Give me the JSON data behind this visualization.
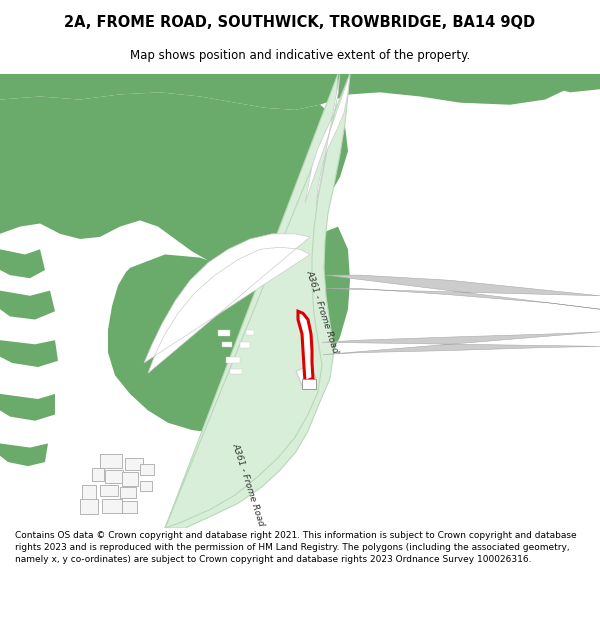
{
  "title": "2A, FROME ROAD, SOUTHWICK, TROWBRIDGE, BA14 9QD",
  "subtitle": "Map shows position and indicative extent of the property.",
  "footer": "Contains OS data © Crown copyright and database right 2021. This information is subject to Crown copyright and database rights 2023 and is reproduced with the permission of HM Land Registry. The polygons (including the associated geometry, namely x, y co-ordinates) are subject to Crown copyright and database rights 2023 Ordnance Survey 100026316.",
  "bg_color": "#ffffff",
  "map_light_green": "#cce5cc",
  "map_dark_green": "#6aaa6a",
  "road_fill": "#d8eed8",
  "road_edge": "#b8d8b8",
  "white": "#ffffff",
  "gray_road": "#cccccc",
  "gray_road_edge": "#aaaaaa",
  "red": "#dd0000",
  "building_fill": "#f5f5f5",
  "building_edge": "#aaaaaa",
  "text_color": "#333333"
}
